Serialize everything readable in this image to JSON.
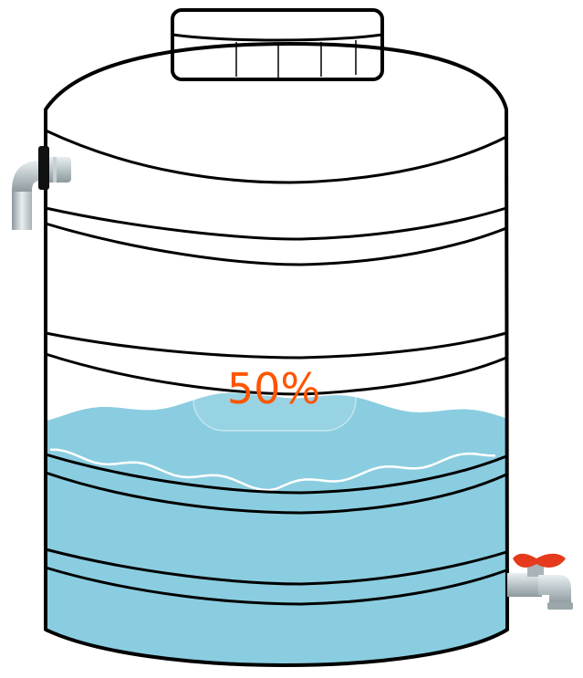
{
  "tank": {
    "fill_level_percent": 50,
    "fill_label": "50%",
    "colors": {
      "water": "#8acde0",
      "label": "#ff5500",
      "valve_handle": "#e53b1c",
      "pipe": "#b9c4c8",
      "outline": "#000000"
    },
    "icons": {
      "inlet": "inlet-pipe-icon",
      "outlet": "outlet-valve-icon"
    }
  }
}
